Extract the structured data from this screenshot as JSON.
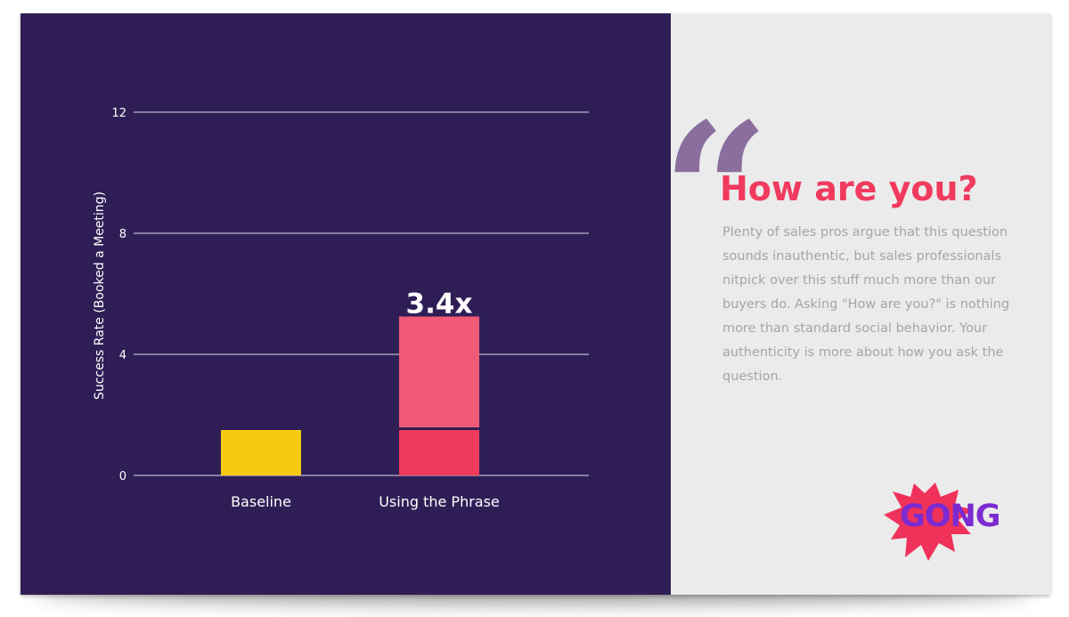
{
  "chart_data": {
    "type": "bar",
    "stacked": true,
    "categories": [
      "Baseline",
      "Using the Phrase"
    ],
    "series": [
      {
        "values": [
          1.5,
          1.5
        ],
        "colors": [
          "#f5cb11",
          "#ee3a5b"
        ]
      },
      {
        "values": [
          0,
          3.75
        ],
        "colors": [
          "#f05a77",
          "#f05a77"
        ]
      }
    ],
    "annotation": {
      "category": "Using the Phrase",
      "text": "3.4x"
    },
    "title": "",
    "xlabel": "",
    "ylabel": "Success Rate (Booked a Meeting)",
    "ylim": [
      0,
      12
    ],
    "yticks": [
      0,
      4,
      8,
      12
    ],
    "grid": true,
    "colors": {
      "background": "#2f1e56",
      "grid": "#ffffff",
      "text": "#ffffff"
    }
  },
  "quote": {
    "icon": "open-quote-icon",
    "title": "How are you?",
    "body": "Plenty of sales pros argue that this question sounds inauthentic, but sales professionals nitpick over this stuff much more than our buyers do. Asking \"How are you?\" is nothing more than standard social behavior. Your authenticity is more about how you ask the question.",
    "colors": {
      "title": "#f03a5e",
      "body": "#a5a5a5",
      "quote_mark": "#8a6f9e",
      "background": "#ebebeb"
    }
  },
  "logo": {
    "text": "GONG",
    "colors": {
      "burst": "#f0325a",
      "text": "#7b2bd1"
    }
  }
}
